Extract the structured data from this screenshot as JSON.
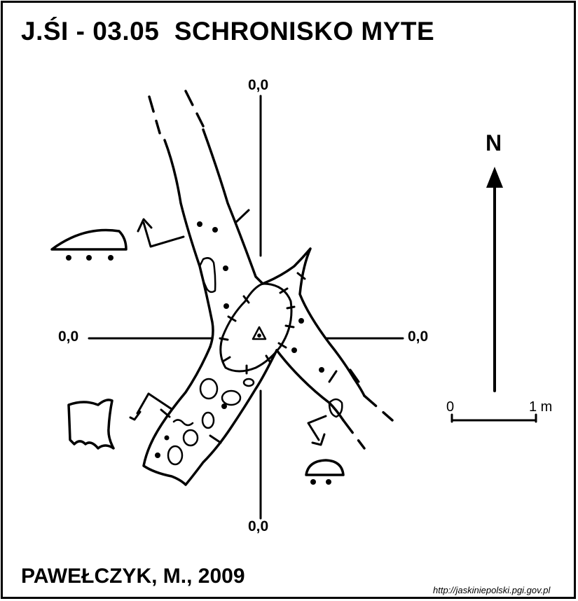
{
  "header": {
    "title": "J.ŚI - 03.05  SCHRONISKO MYTE"
  },
  "coordinates": {
    "top": "0,0",
    "bottom": "0,0",
    "left": "0,0",
    "right": "0,0"
  },
  "north_arrow": {
    "label": "N"
  },
  "scale_bar": {
    "start_label": "0",
    "end_label": "1 m"
  },
  "footer": {
    "author": "PAWEŁCZYK, M., 2009",
    "source": "http://jaskiniepolski.pgi.gov.pl"
  },
  "colors": {
    "ink": "#000000",
    "paper": "#ffffff"
  },
  "symbols": [
    "profile-dome-icon",
    "profile-rect-icon",
    "profile-small-dome-icon",
    "datum-triangle-icon",
    "section-arrow-icon"
  ]
}
